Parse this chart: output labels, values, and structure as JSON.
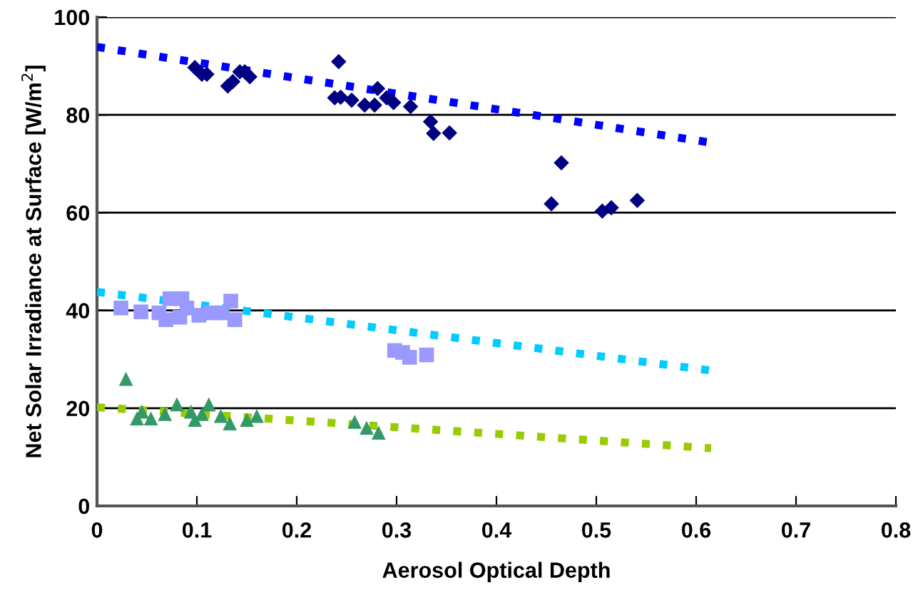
{
  "chart_data": {
    "type": "scatter",
    "xlabel": "Aerosol Optical Depth",
    "ylabel": "Net Solar Irradiance at Surface [W/m$^{2}$]",
    "xlim": [
      0,
      0.8
    ],
    "xticks": [
      {
        "value": 0,
        "label": "0"
      },
      0.1,
      0.2,
      0.3,
      0.4,
      0.5,
      0.6,
      0.7,
      0.8
    ],
    "ylim": [
      0,
      100
    ],
    "yticks": [
      0,
      20,
      40,
      60,
      80,
      100
    ],
    "grid": "y",
    "legend": false,
    "series": [
      {
        "marker": "diamond",
        "color": "#000080",
        "x": [
          0.098,
          0.105,
          0.11,
          0.131,
          0.136,
          0.143,
          0.148,
          0.153,
          0.242,
          0.238,
          0.244,
          0.255,
          0.268,
          0.278,
          0.281,
          0.29,
          0.297,
          0.314,
          0.334,
          0.337,
          0.353,
          0.455,
          0.465,
          0.506,
          0.515,
          0.541
        ],
        "values": [
          89.7,
          88.3,
          88.3,
          85.9,
          86.8,
          88.8,
          88.8,
          87.8,
          90.9,
          83.5,
          83.6,
          83,
          82,
          82,
          85.4,
          83.5,
          82.5,
          81.7,
          78.6,
          76.2,
          76.3,
          61.8,
          70.2,
          60.3,
          61,
          62.5
        ]
      },
      {
        "marker": "square",
        "color": "#9999ff",
        "x": [
          0.024,
          0.044,
          0.062,
          0.069,
          0.073,
          0.085,
          0.083,
          0.09,
          0.102,
          0.114,
          0.124,
          0.134,
          0.138,
          0.298,
          0.306,
          0.313,
          0.33
        ],
        "values": [
          40.5,
          39.7,
          39.5,
          38.1,
          42.4,
          42.4,
          38.6,
          40.5,
          39,
          39.5,
          39.5,
          41.9,
          38.1,
          31.8,
          31.4,
          30.4,
          30.9
        ]
      },
      {
        "marker": "triangle",
        "color": "#339966",
        "x": [
          0.029,
          0.04,
          0.045,
          0.054,
          0.068,
          0.08,
          0.094,
          0.098,
          0.105,
          0.112,
          0.124,
          0.133,
          0.15,
          0.16,
          0.258,
          0.27,
          0.282
        ],
        "values": [
          26,
          17.9,
          19.3,
          17.9,
          18.8,
          20.8,
          19.3,
          17.6,
          18.8,
          20.8,
          18.4,
          16.9,
          17.6,
          18.4,
          17.2,
          16,
          15
        ]
      },
      {
        "type": "line",
        "line_style": "dotted",
        "color": "#0000ff",
        "x": [
          0,
          0.615
        ],
        "values": [
          93.9,
          74.3
        ]
      },
      {
        "type": "line",
        "line_style": "dotted",
        "color": "#00ccff",
        "x": [
          0,
          0.615
        ],
        "values": [
          43.8,
          27.7
        ]
      },
      {
        "type": "line",
        "line_style": "dotted",
        "color": "#99cc00",
        "x": [
          0,
          0.615
        ],
        "values": [
          20.2,
          11.8
        ]
      }
    ]
  }
}
